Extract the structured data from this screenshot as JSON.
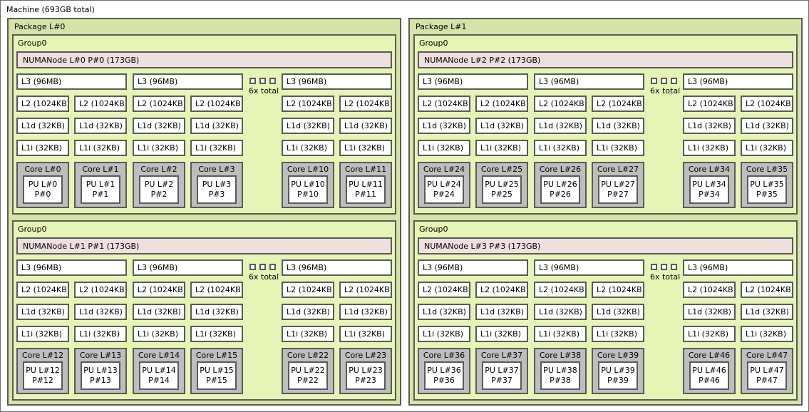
{
  "machine": {
    "label": "Machine (693GB total)"
  },
  "labels": {
    "l3": "L3 (96MB)",
    "l2": "L2 (1024KB)",
    "l1d": "L1d (32KB)",
    "l1i": "L1i (32KB)",
    "elision": "6x total"
  },
  "colors": {
    "package_bg": "#d5e3a7",
    "group_bg": "#e6f5b5",
    "numanode_bg": "#efdfde",
    "cache_bg": "#ffffff",
    "core_bg": "#bebebe",
    "pu_bg": "#ffffff",
    "border": "#5a5a5a"
  },
  "packages": [
    {
      "label": "Package L#0",
      "groups": [
        {
          "label": "Group0",
          "numanode": "NUMANode L#0 P#0 (173GB)",
          "units": [
            {
              "type": "l3",
              "cores": [
                {
                  "core": "Core L#0",
                  "pu": "PU L#0",
                  "p": "P#0"
                },
                {
                  "core": "Core L#1",
                  "pu": "PU L#1",
                  "p": "P#1"
                }
              ]
            },
            {
              "type": "l3",
              "cores": [
                {
                  "core": "Core L#2",
                  "pu": "PU L#2",
                  "p": "P#2"
                },
                {
                  "core": "Core L#3",
                  "pu": "PU L#3",
                  "p": "P#3"
                }
              ]
            },
            {
              "type": "elision"
            },
            {
              "type": "l3",
              "cores": [
                {
                  "core": "Core L#10",
                  "pu": "PU L#10",
                  "p": "P#10"
                },
                {
                  "core": "Core L#11",
                  "pu": "PU L#11",
                  "p": "P#11"
                }
              ]
            }
          ]
        },
        {
          "label": "Group0",
          "numanode": "NUMANode L#1 P#1 (173GB)",
          "units": [
            {
              "type": "l3",
              "cores": [
                {
                  "core": "Core L#12",
                  "pu": "PU L#12",
                  "p": "P#12"
                },
                {
                  "core": "Core L#13",
                  "pu": "PU L#13",
                  "p": "P#13"
                }
              ]
            },
            {
              "type": "l3",
              "cores": [
                {
                  "core": "Core L#14",
                  "pu": "PU L#14",
                  "p": "P#14"
                },
                {
                  "core": "Core L#15",
                  "pu": "PU L#15",
                  "p": "P#15"
                }
              ]
            },
            {
              "type": "elision"
            },
            {
              "type": "l3",
              "cores": [
                {
                  "core": "Core L#22",
                  "pu": "PU L#22",
                  "p": "P#22"
                },
                {
                  "core": "Core L#23",
                  "pu": "PU L#23",
                  "p": "P#23"
                }
              ]
            }
          ]
        }
      ]
    },
    {
      "label": "Package L#1",
      "groups": [
        {
          "label": "Group0",
          "numanode": "NUMANode L#2 P#2 (173GB)",
          "units": [
            {
              "type": "l3",
              "cores": [
                {
                  "core": "Core L#24",
                  "pu": "PU L#24",
                  "p": "P#24"
                },
                {
                  "core": "Core L#25",
                  "pu": "PU L#25",
                  "p": "P#25"
                }
              ]
            },
            {
              "type": "l3",
              "cores": [
                {
                  "core": "Core L#26",
                  "pu": "PU L#26",
                  "p": "P#26"
                },
                {
                  "core": "Core L#27",
                  "pu": "PU L#27",
                  "p": "P#27"
                }
              ]
            },
            {
              "type": "elision"
            },
            {
              "type": "l3",
              "cores": [
                {
                  "core": "Core L#34",
                  "pu": "PU L#34",
                  "p": "P#34"
                },
                {
                  "core": "Core L#35",
                  "pu": "PU L#35",
                  "p": "P#35"
                }
              ]
            }
          ]
        },
        {
          "label": "Group0",
          "numanode": "NUMANode L#3 P#3 (173GB)",
          "units": [
            {
              "type": "l3",
              "cores": [
                {
                  "core": "Core L#36",
                  "pu": "PU L#36",
                  "p": "P#36"
                },
                {
                  "core": "Core L#37",
                  "pu": "PU L#37",
                  "p": "P#37"
                }
              ]
            },
            {
              "type": "l3",
              "cores": [
                {
                  "core": "Core L#38",
                  "pu": "PU L#38",
                  "p": "P#38"
                },
                {
                  "core": "Core L#39",
                  "pu": "PU L#39",
                  "p": "P#39"
                }
              ]
            },
            {
              "type": "elision"
            },
            {
              "type": "l3",
              "cores": [
                {
                  "core": "Core L#46",
                  "pu": "PU L#46",
                  "p": "P#46"
                },
                {
                  "core": "Core L#47",
                  "pu": "PU L#47",
                  "p": "P#47"
                }
              ]
            }
          ]
        }
      ]
    }
  ]
}
